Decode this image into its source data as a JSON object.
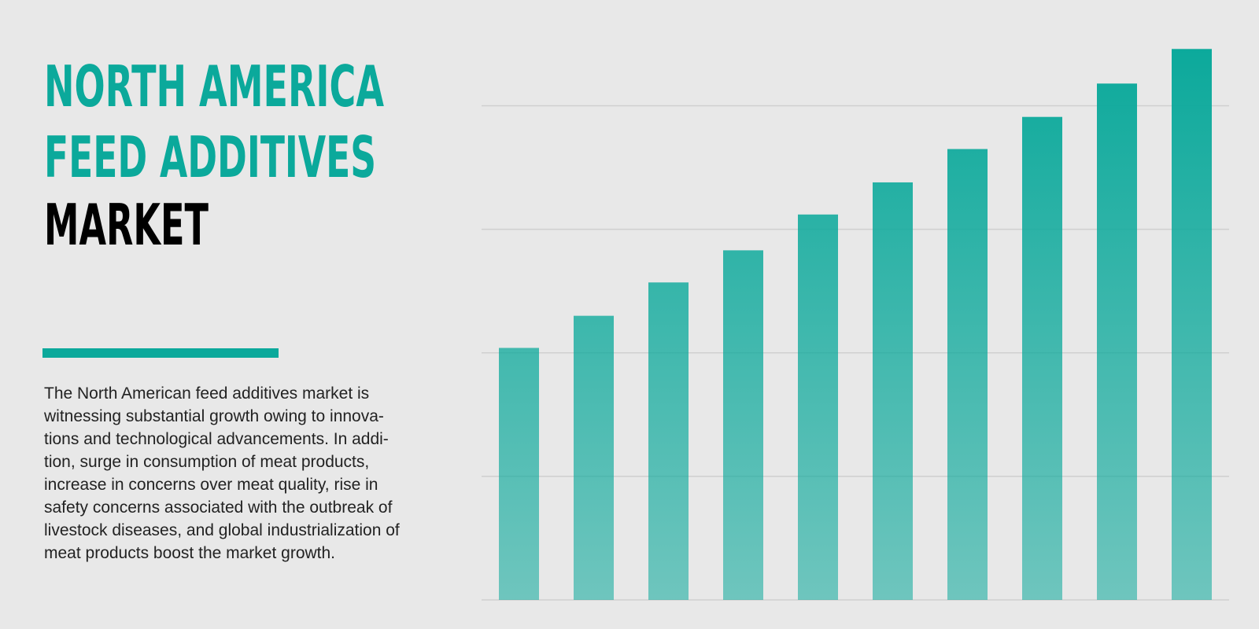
{
  "chart_data": {
    "type": "bar",
    "title_lines": [
      "NORTH AMERICA",
      "FEED ADDITIVES",
      "MARKET"
    ],
    "description_lines": [
      "The North American feed additives market is",
      "witnessing substantial growth owing to innova-",
      "tions and technological advancements. In addi-",
      "tion, surge in consumption of meat products,",
      "increase in concerns over meat quality, rise in",
      "safety concerns associated with the outbreak of",
      "livestock diseases, and global industrialization of",
      "meat products boost the market growth."
    ],
    "categories": [
      null,
      null,
      null,
      null,
      null,
      null,
      null,
      null,
      null,
      null
    ],
    "values": [
      2.04,
      2.3,
      2.57,
      2.83,
      3.12,
      3.38,
      3.65,
      3.91,
      4.18,
      4.46
    ],
    "color": "#0ba99b",
    "ylim": [
      0,
      4.5
    ],
    "yticks": [
      0,
      1,
      2,
      3,
      4
    ],
    "grid": true
  }
}
